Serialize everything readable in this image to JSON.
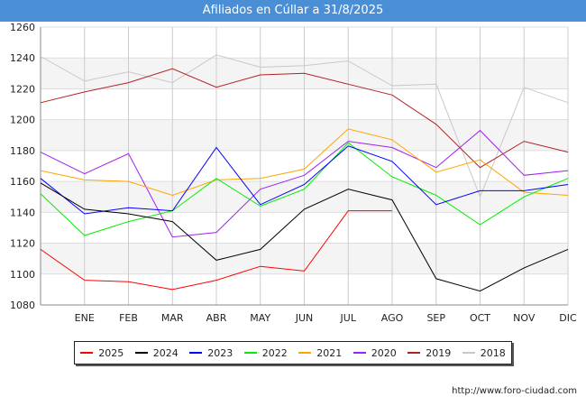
{
  "title": "Afiliados en Cúllar a 31/8/2025",
  "source": "http://www.foro-ciudad.com",
  "chart_data": {
    "type": "line",
    "categories": [
      "",
      "ENE",
      "FEB",
      "MAR",
      "ABR",
      "MAY",
      "JUN",
      "JUL",
      "AGO",
      "SEP",
      "OCT",
      "NOV",
      "DIC"
    ],
    "ylim": [
      1080,
      1260
    ],
    "yticks": [
      1080,
      1100,
      1120,
      1140,
      1160,
      1180,
      1200,
      1220,
      1240,
      1260
    ],
    "grid": true,
    "legend_position": "bottom",
    "series": [
      {
        "name": "2025",
        "color": "#ff0000",
        "values": [
          1116,
          1096,
          1095,
          1090,
          1096,
          1105,
          1102,
          1141,
          1141,
          null,
          null,
          null,
          null
        ]
      },
      {
        "name": "2024",
        "color": "#000000",
        "values": [
          1159,
          1142,
          1139,
          1134,
          1109,
          1116,
          1142,
          1155,
          1148,
          1097,
          1089,
          1104,
          1116
        ]
      },
      {
        "name": "2023",
        "color": "#0000ff",
        "values": [
          1162,
          1139,
          1143,
          1141,
          1182,
          1145,
          1158,
          1183,
          1173,
          1145,
          1154,
          1154,
          1158
        ]
      },
      {
        "name": "2022",
        "color": "#00ee00",
        "values": [
          1152,
          1125,
          1134,
          1141,
          1162,
          1144,
          1155,
          1185,
          1163,
          1151,
          1132,
          1150,
          1162
        ]
      },
      {
        "name": "2021",
        "color": "#ffa500",
        "values": [
          1167,
          1161,
          1160,
          1151,
          1161,
          1162,
          1168,
          1194,
          1187,
          1166,
          1174,
          1153,
          1151
        ]
      },
      {
        "name": "2020",
        "color": "#a020f0",
        "values": [
          1179,
          1165,
          1178,
          1124,
          1127,
          1155,
          1164,
          1186,
          1182,
          1169,
          1193,
          1164,
          1167
        ]
      },
      {
        "name": "2019",
        "color": "#b22222",
        "values": [
          1211,
          1218,
          1224,
          1233,
          1221,
          1229,
          1230,
          1223,
          1216,
          1197,
          1169,
          1186,
          1179
        ]
      },
      {
        "name": "2018",
        "color": "#c8c8c8",
        "values": [
          1241,
          1225,
          1231,
          1224,
          1242,
          1234,
          1235,
          1238,
          1222,
          1223,
          1150,
          1221,
          1211
        ]
      }
    ]
  }
}
